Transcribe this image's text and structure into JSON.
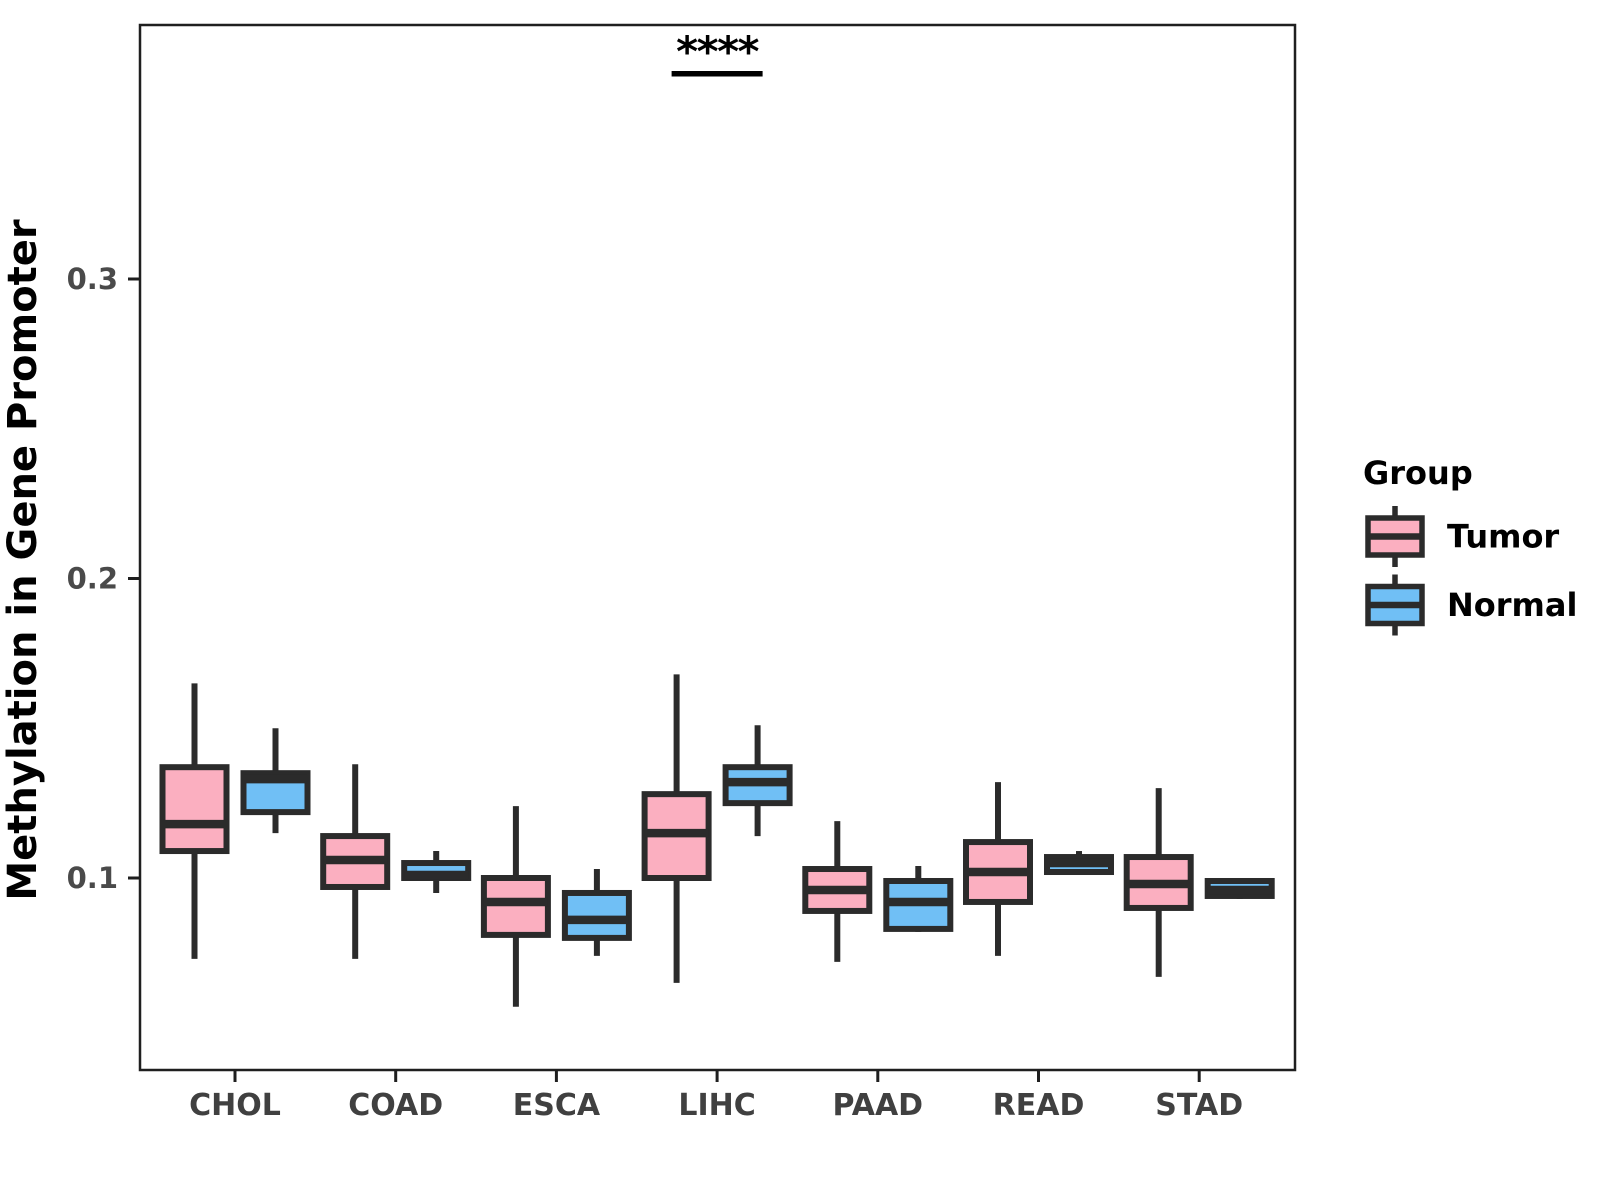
{
  "chart_data": {
    "type": "boxplot",
    "title": "",
    "xlabel": "",
    "ylabel": "Methylation in Gene Promoter",
    "categories": [
      "CHOL",
      "COAD",
      "ESCA",
      "LIHC",
      "PAAD",
      "READ",
      "STAD"
    ],
    "y_axis": {
      "ticks": [
        {
          "value": 0.1,
          "label": "0.1"
        },
        {
          "value": 0.2,
          "label": "0.2"
        },
        {
          "value": 0.3,
          "label": "0.3"
        }
      ],
      "range": [
        0.037,
        0.384
      ],
      "grid": false
    },
    "legend": {
      "title": "Group",
      "position": "right",
      "entries": [
        {
          "label": "Tumor",
          "fill": "#FBAFC0"
        },
        {
          "label": "Normal",
          "fill": "#70BFF5"
        }
      ]
    },
    "series": [
      {
        "name": "Tumor",
        "fill": "#FBAFC0",
        "boxes": [
          {
            "category": "CHOL",
            "min": 0.073,
            "q1": 0.109,
            "median": 0.118,
            "q3": 0.137,
            "max": 0.165
          },
          {
            "category": "COAD",
            "min": 0.073,
            "q1": 0.097,
            "median": 0.106,
            "q3": 0.114,
            "max": 0.138
          },
          {
            "category": "ESCA",
            "min": 0.057,
            "q1": 0.081,
            "median": 0.092,
            "q3": 0.1,
            "max": 0.124
          },
          {
            "category": "LIHC",
            "min": 0.065,
            "q1": 0.1,
            "median": 0.115,
            "q3": 0.128,
            "max": 0.168
          },
          {
            "category": "PAAD",
            "min": 0.072,
            "q1": 0.089,
            "median": 0.096,
            "q3": 0.103,
            "max": 0.119
          },
          {
            "category": "READ",
            "min": 0.074,
            "q1": 0.092,
            "median": 0.102,
            "q3": 0.112,
            "max": 0.132
          },
          {
            "category": "STAD",
            "min": 0.067,
            "q1": 0.09,
            "median": 0.098,
            "q3": 0.107,
            "max": 0.13
          }
        ]
      },
      {
        "name": "Normal",
        "fill": "#70BFF5",
        "boxes": [
          {
            "category": "CHOL",
            "min": 0.115,
            "q1": 0.122,
            "median": 0.133,
            "q3": 0.135,
            "max": 0.15
          },
          {
            "category": "COAD",
            "min": 0.095,
            "q1": 0.1,
            "median": 0.101,
            "q3": 0.105,
            "max": 0.109
          },
          {
            "category": "ESCA",
            "min": 0.074,
            "q1": 0.08,
            "median": 0.086,
            "q3": 0.095,
            "max": 0.103
          },
          {
            "category": "LIHC",
            "min": 0.114,
            "q1": 0.125,
            "median": 0.132,
            "q3": 0.137,
            "max": 0.151
          },
          {
            "category": "PAAD",
            "min": 0.082,
            "q1": 0.083,
            "median": 0.092,
            "q3": 0.099,
            "max": 0.104
          },
          {
            "category": "READ",
            "min": 0.101,
            "q1": 0.102,
            "median": 0.105,
            "q3": 0.107,
            "max": 0.109
          },
          {
            "category": "STAD",
            "min": 0.093,
            "q1": 0.094,
            "median": 0.096,
            "q3": 0.099,
            "max": 0.1
          }
        ]
      }
    ],
    "annotation": {
      "text": "****",
      "category": "LIHC",
      "spans": [
        "Tumor",
        "Normal"
      ]
    },
    "colors": {
      "box_stroke": "#2B2B2B",
      "panel_border": "#1F1F1F",
      "tick_mark": "#1F1F1F",
      "tick_label": "#4A4A4A",
      "axis_title": "#000000",
      "background": "#FFFFFF"
    }
  }
}
